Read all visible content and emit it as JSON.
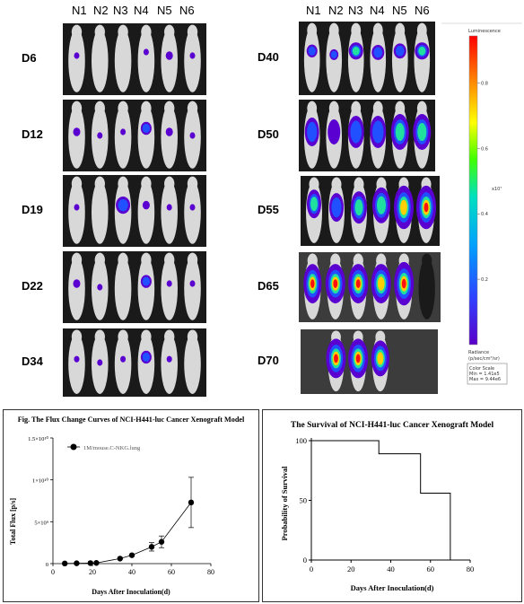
{
  "left_columns": [
    "N1",
    "N2",
    "N3",
    "N4",
    "N5",
    "N6"
  ],
  "right_columns": [
    "N1",
    "N2",
    "N3",
    "N4",
    "N5",
    "N6"
  ],
  "left_days": [
    "D6",
    "D12",
    "D19",
    "D22",
    "D34"
  ],
  "right_days": [
    "D40",
    "D50",
    "D55",
    "D65",
    "D70"
  ],
  "colorbar": {
    "title": "Luminescence",
    "ticks": [
      "0.8",
      "0.6",
      "0.4",
      "0.2"
    ],
    "exp": "x10⁷",
    "unit_line1": "Radiance",
    "unit_line2": "(p/sec/cm²/sr)",
    "scale_title": "Color Scale",
    "scale_min": "Min = 1.41e5",
    "scale_max": "Max = 9.44e6"
  },
  "chart_data": [
    {
      "type": "line",
      "title": "Fig. The Flux Change Curves of NCI-H441-luc Cancer Xenograft Model",
      "xlabel": "Days After Inoculation(d)",
      "ylabel": "Total Flux [p/s]",
      "xlim": [
        0,
        80
      ],
      "ylim": [
        0,
        15000000000
      ],
      "x_ticks": [
        "0",
        "20",
        "40",
        "60",
        "80"
      ],
      "y_ticks": [
        "0",
        "5×10⁹",
        "1×10¹⁰",
        "1.5×10¹⁰"
      ],
      "legend": "1M/mouse.C-NKG.lung",
      "grid": false,
      "series": [
        {
          "name": "1M/mouse.C-NKG.lung",
          "x": [
            6,
            12,
            19,
            22,
            34,
            40,
            50,
            55,
            70
          ],
          "y": [
            20000000,
            40000000,
            60000000,
            80000000,
            600000000,
            1000000000,
            2000000000,
            2600000000,
            7300000000
          ],
          "err": [
            0,
            0,
            0,
            0,
            0,
            0,
            500000000,
            700000000,
            3000000000
          ]
        }
      ]
    },
    {
      "type": "line",
      "title": "The Survival of NCI-H441-luc Cancer Xenograft Model",
      "xlabel": "Days After Inoculation(d)",
      "ylabel": "Probability of Survival",
      "xlim": [
        0,
        80
      ],
      "ylim": [
        0,
        100
      ],
      "x_ticks": [
        "0",
        "20",
        "40",
        "60",
        "80"
      ],
      "y_ticks": [
        "0",
        "50",
        "100"
      ],
      "grid": false,
      "series": [
        {
          "steps_x": [
            0,
            34,
            34,
            55,
            55,
            70,
            70
          ],
          "steps_y": [
            100,
            100,
            89,
            89,
            56,
            56,
            0
          ]
        }
      ]
    }
  ]
}
